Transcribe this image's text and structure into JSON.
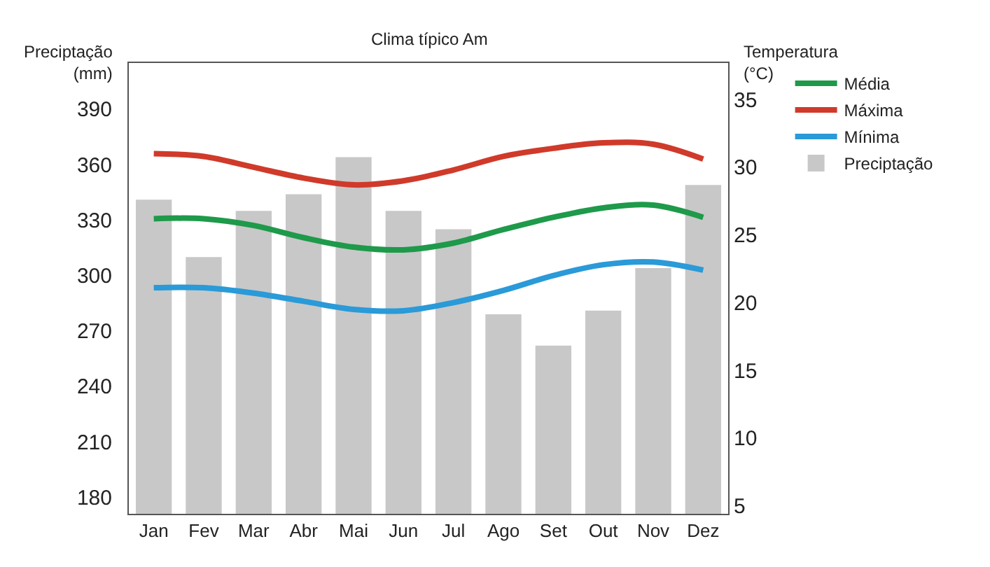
{
  "chart_data": {
    "type": "line",
    "title": "Clima típico Am",
    "ylabel": "Preciptação\n(mm)",
    "y2label": "Temperatura\n(°C)",
    "categories": [
      "Jan",
      "Fev",
      "Mar",
      "Abr",
      "Mai",
      "Jun",
      "Jul",
      "Ago",
      "Set",
      "Out",
      "Nov",
      "Dez"
    ],
    "series": [
      {
        "name": "Média",
        "axis": "y2",
        "color": "#1e9a4a",
        "values": [
          26.2,
          26.2,
          25.7,
          24.8,
          24.1,
          23.9,
          24.4,
          25.4,
          26.3,
          27.0,
          27.2,
          26.3
        ]
      },
      {
        "name": "Máxima",
        "axis": "y2",
        "color": "#d03a2a",
        "values": [
          31.0,
          30.8,
          30.0,
          29.2,
          28.7,
          29.0,
          29.8,
          30.8,
          31.4,
          31.8,
          31.7,
          30.6
        ]
      },
      {
        "name": "Mínima",
        "axis": "y2",
        "color": "#2a9ad8",
        "values": [
          21.1,
          21.1,
          20.7,
          20.1,
          19.5,
          19.4,
          20.0,
          20.9,
          22.0,
          22.8,
          23.0,
          22.4
        ]
      },
      {
        "name": "Preciptação",
        "type": "bar",
        "color": "#c8c8c8",
        "values": [
          341,
          310,
          335,
          344,
          364,
          335,
          325,
          279,
          262,
          281,
          304,
          349
        ]
      }
    ],
    "ylim": [
      171,
      415
    ],
    "yticks": [
      180,
      210,
      240,
      270,
      300,
      330,
      360,
      390
    ],
    "y2lim": [
      4.4,
      37.7
    ],
    "y2ticks": [
      5,
      10,
      15,
      20,
      25,
      30,
      35
    ],
    "legend": "top right",
    "marker": "none",
    "line_style": "solid"
  }
}
